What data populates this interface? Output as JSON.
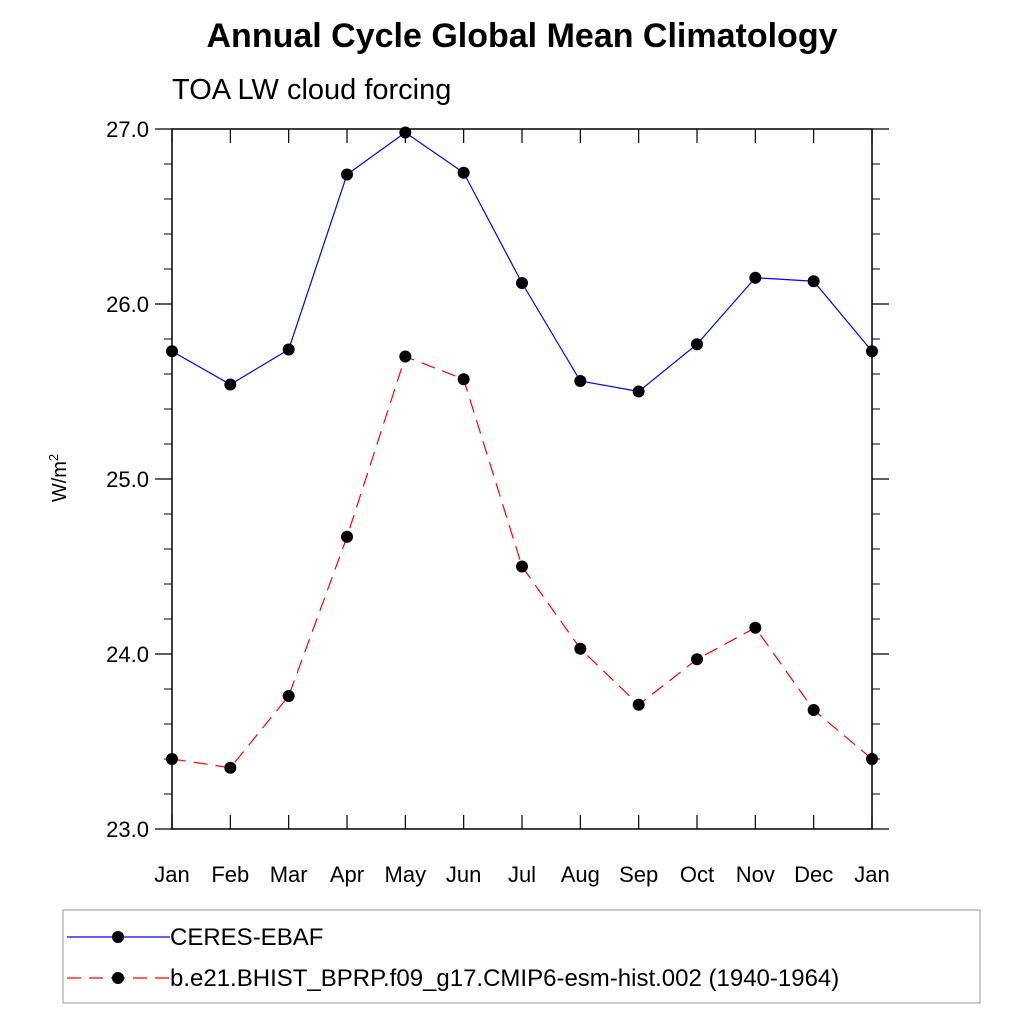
{
  "chart_data": {
    "type": "line",
    "title": "Annual Cycle Global Mean Climatology",
    "subtitle": "TOA LW cloud forcing",
    "ylabel_base": "W/m",
    "ylabel_sup": "2",
    "categories": [
      "Jan",
      "Feb",
      "Mar",
      "Apr",
      "May",
      "Jun",
      "Jul",
      "Aug",
      "Sep",
      "Oct",
      "Nov",
      "Dec",
      "Jan"
    ],
    "ylim": [
      23.0,
      27.0
    ],
    "yticks": [
      "23.0",
      "24.0",
      "25.0",
      "26.0",
      "27.0"
    ],
    "grid": false,
    "legend_position": "bottom",
    "series": [
      {
        "name": "CERES-EBAF",
        "color": "#0000ff",
        "dash": "solid",
        "values": [
          25.73,
          25.54,
          25.74,
          26.74,
          26.98,
          26.75,
          26.12,
          25.56,
          25.5,
          25.77,
          26.15,
          26.13,
          25.73
        ]
      },
      {
        "name": "b.e21.BHIST_BPRP.f09_g17.CMIP6-esm-hist.002 (1940-1964)",
        "color": "#ff0000",
        "dash": "dashed",
        "values": [
          23.4,
          23.35,
          23.76,
          24.67,
          25.7,
          25.57,
          24.5,
          24.03,
          23.71,
          23.97,
          24.15,
          23.68,
          23.4
        ]
      }
    ]
  }
}
